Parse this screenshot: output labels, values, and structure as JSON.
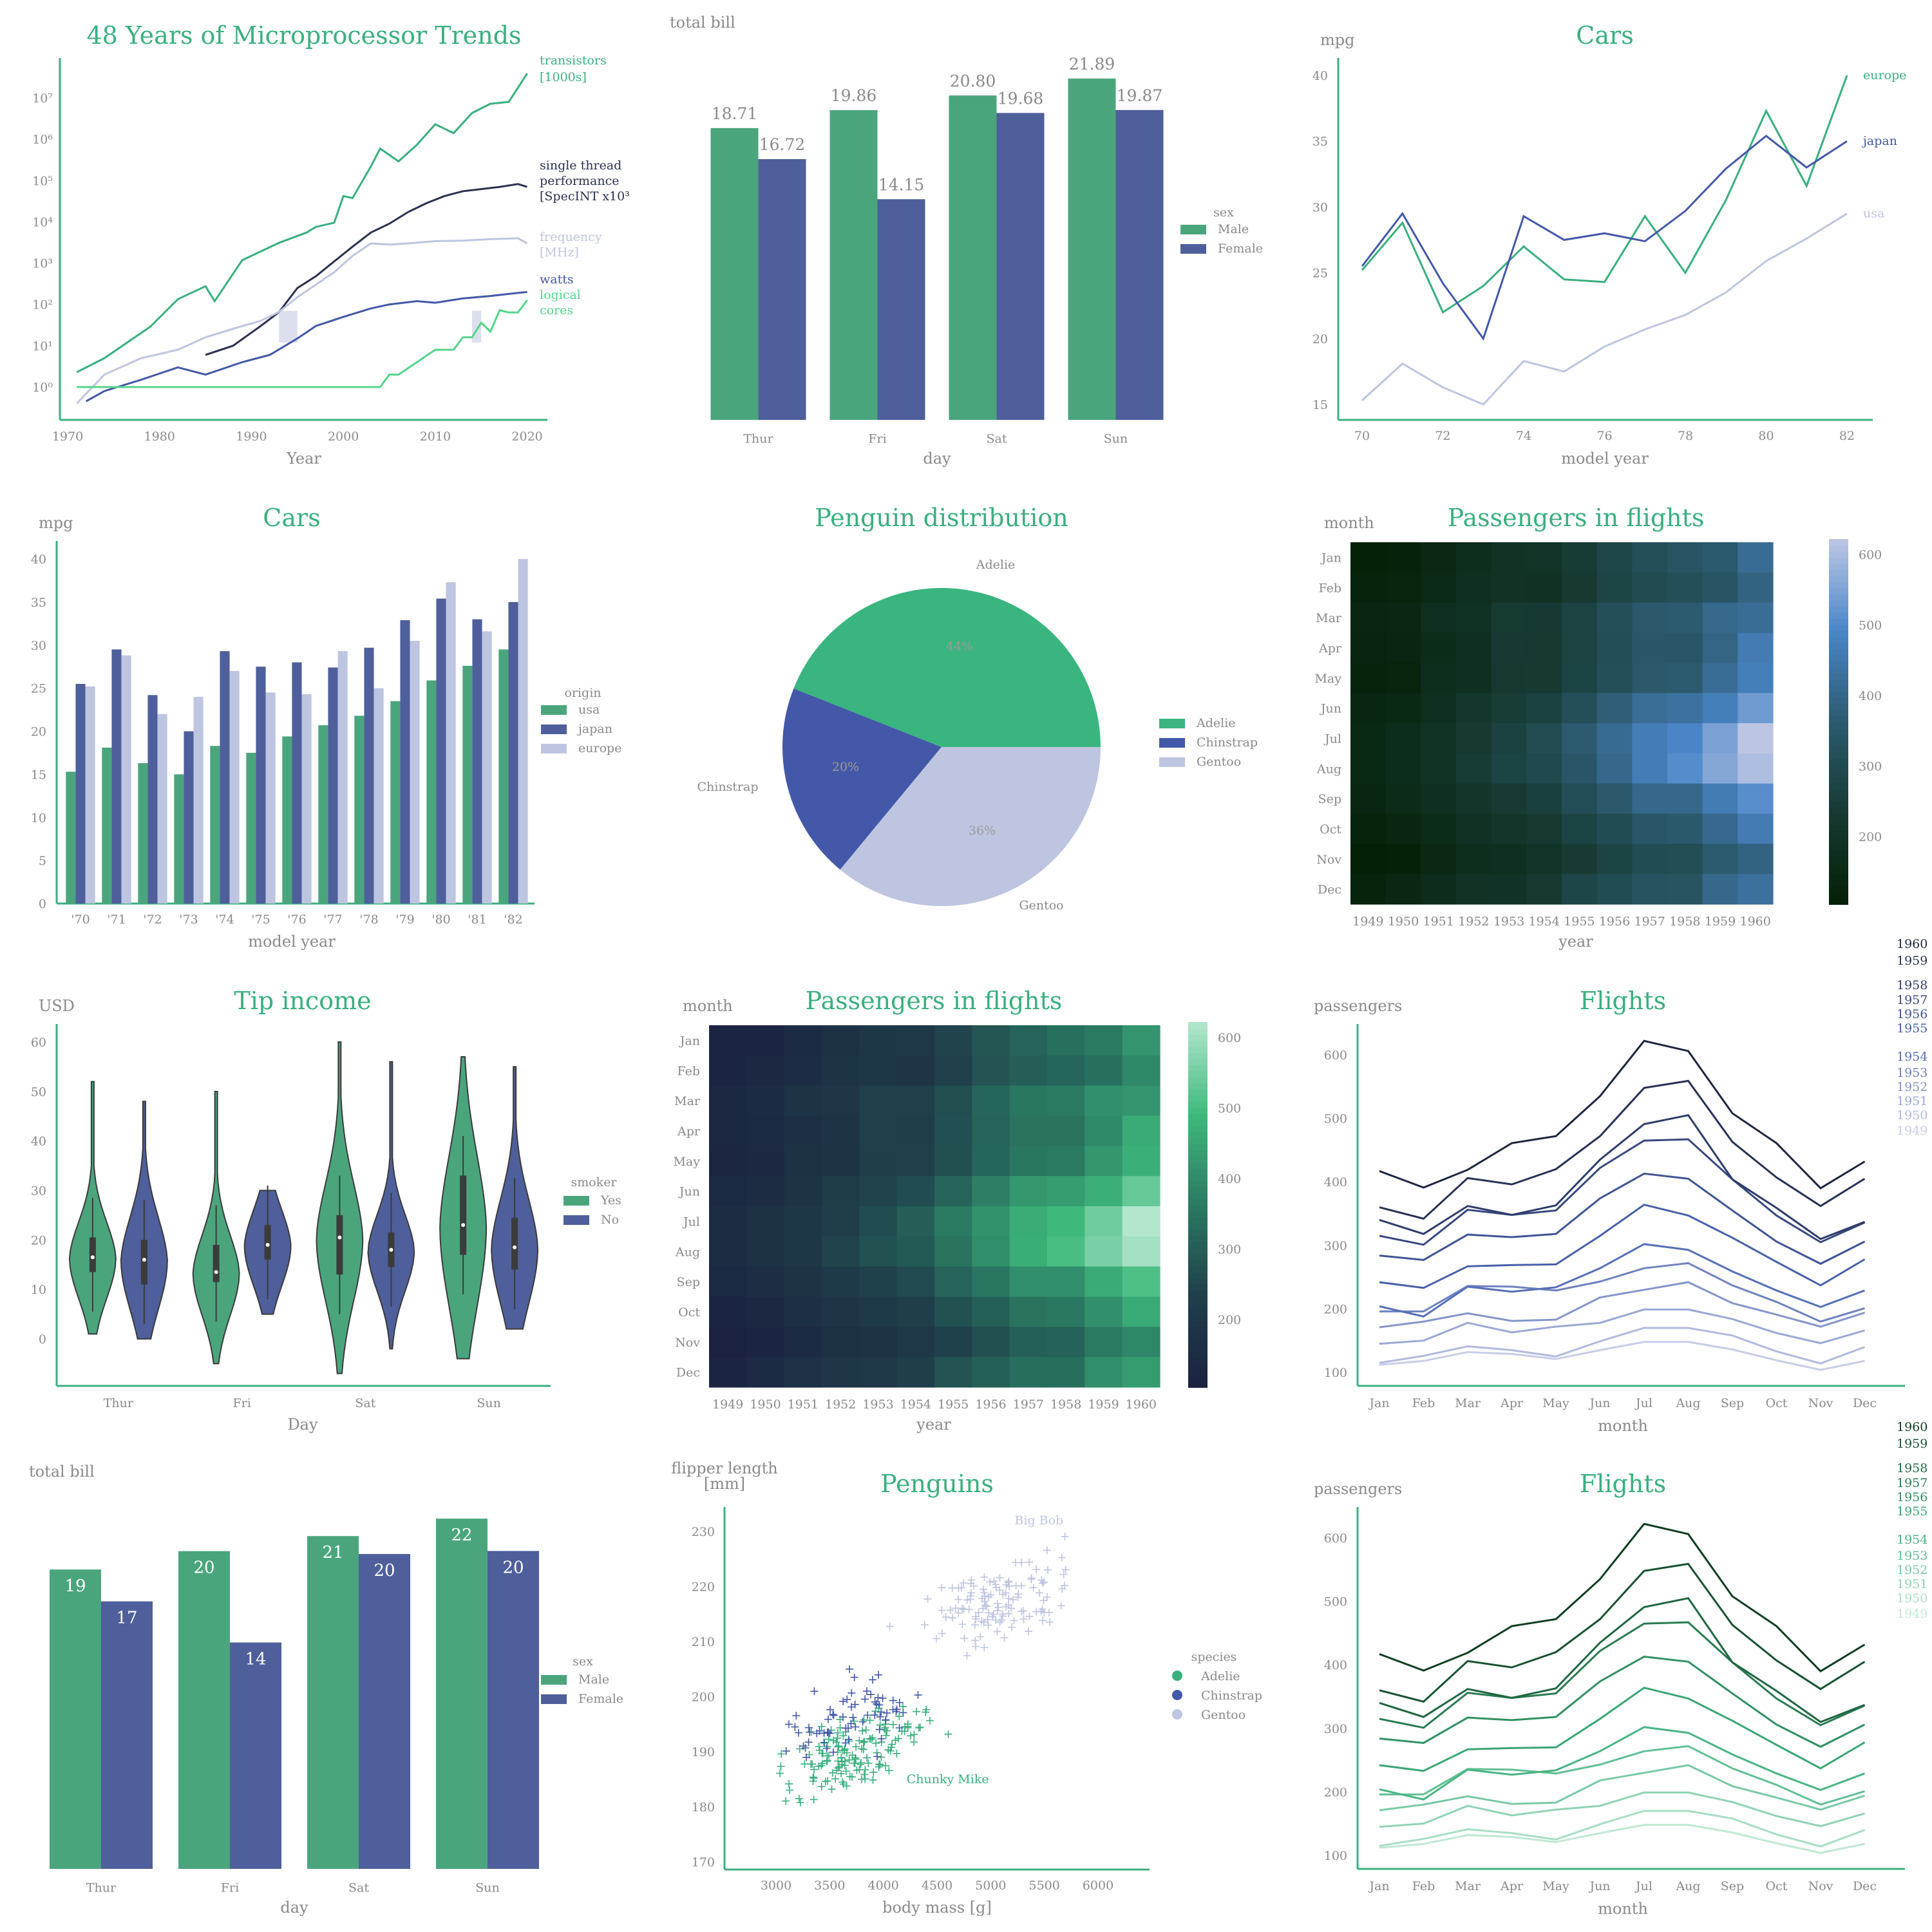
{
  "colors": {
    "green": "#3aaf7e",
    "green_bar": "#4aa57d",
    "green_light": "#55d48a",
    "blue": "#4e5f9b",
    "blue_mid": "#4358a8",
    "lavender": "#bec5e0",
    "navy": "#2b3150",
    "axis": "#3aaf7e",
    "text": "#8a8a8a"
  },
  "chart_data": [
    {
      "type": "line",
      "title": "48 Years of Microprocessor Trends",
      "xlabel": "Year",
      "ylabel": "",
      "yscale": "log",
      "xlim": [
        1970,
        2021
      ],
      "ylim": [
        0.4,
        80000000.0
      ],
      "xticks": [
        "1970",
        "1980",
        "1990",
        "2000",
        "2010",
        "2020"
      ],
      "yticks": [
        "10⁰",
        "10¹",
        "10²",
        "10³",
        "10⁴",
        "10⁵",
        "10⁶",
        "10⁷"
      ],
      "series": [
        {
          "name": "transistors [1000s]",
          "label_lines": [
            "transistors",
            "[1000s]"
          ],
          "color": "#3aaf7e",
          "x": [
            1971,
            1974,
            1979,
            1982,
            1985,
            1986,
            1989,
            1993,
            1996,
            1997,
            1999,
            2000,
            2001,
            2003,
            2004,
            2006,
            2008,
            2010,
            2012,
            2014,
            2016,
            2018,
            2020
          ],
          "y": [
            2.3,
            5,
            29,
            134,
            275,
            120,
            1180,
            3100,
            5500,
            7500,
            9500,
            42000,
            37500,
            220000,
            592000,
            291000,
            731000,
            2300000,
            1400000,
            4300000,
            7200000,
            8000000,
            39000000
          ]
        },
        {
          "name": "single thread performance [SpecINT x10³]",
          "label_lines": [
            "single thread",
            "performance",
            "[SpecINT x10³"
          ],
          "color": "#2b3150",
          "x": [
            1985,
            1988,
            1991,
            1993,
            1995,
            1997,
            1999,
            2001,
            2003,
            2005,
            2007,
            2009,
            2011,
            2013,
            2015,
            2017,
            2019,
            2020
          ],
          "y": [
            6,
            10,
            30,
            65,
            250,
            480,
            1100,
            2500,
            5500,
            9000,
            17000,
            28000,
            42000,
            55000,
            62000,
            70000,
            82000,
            70000
          ]
        },
        {
          "name": "frequency [MHz]",
          "label_lines": [
            "frequency",
            "[MHz]"
          ],
          "color": "#bec5e0",
          "x": [
            1971,
            1974,
            1978,
            1982,
            1985,
            1989,
            1991,
            1993,
            1995,
            1997,
            1999,
            2001,
            2003,
            2005,
            2007,
            2010,
            2013,
            2016,
            2019,
            2020
          ],
          "y": [
            0.4,
            2,
            5,
            8,
            16,
            30,
            40,
            66,
            150,
            300,
            600,
            1500,
            3000,
            2800,
            3000,
            3400,
            3500,
            3800,
            4000,
            3000
          ]
        },
        {
          "name": "watts",
          "label_lines": [
            "watts"
          ],
          "color": "#4358a8",
          "x": [
            1972,
            1974,
            1978,
            1982,
            1985,
            1989,
            1992,
            1995,
            1997,
            2000,
            2003,
            2005,
            2008,
            2010,
            2013,
            2016,
            2018,
            2020
          ],
          "y": [
            0.45,
            0.8,
            1.5,
            3,
            2,
            4,
            6,
            15,
            30,
            50,
            80,
            100,
            120,
            110,
            140,
            160,
            180,
            200
          ]
        },
        {
          "name": "logical cores",
          "label_lines": [
            "logical",
            "cores"
          ],
          "color": "#55d48a",
          "x": [
            1971,
            2004,
            2005,
            2006,
            2008,
            2010,
            2012,
            2013,
            2014,
            2015,
            2016,
            2017,
            2018,
            2019,
            2020
          ],
          "y": [
            1,
            1,
            2,
            2,
            4,
            8,
            8,
            16,
            16,
            36,
            22,
            72,
            64,
            64,
            128
          ]
        }
      ]
    },
    {
      "type": "bar",
      "title": "",
      "ylabel": "total bill",
      "xlabel": "day",
      "ylim": [
        0,
        23
      ],
      "categories": [
        "Thur",
        "Fri",
        "Sat",
        "Sun"
      ],
      "legend_title": "sex",
      "series": [
        {
          "name": "Male",
          "values": [
            18.71,
            19.86,
            20.8,
            21.89
          ],
          "labels": [
            "18.71",
            "19.86",
            "20.80",
            "21.89"
          ],
          "color": "#4aa57d"
        },
        {
          "name": "Female",
          "values": [
            16.72,
            14.15,
            19.68,
            19.87
          ],
          "labels": [
            "16.72",
            "14.15",
            "19.68",
            "19.87"
          ],
          "color": "#4e5f9b"
        }
      ]
    },
    {
      "type": "line",
      "title": "Cars",
      "ylabel": "mpg",
      "xlabel": "model year",
      "xlim": [
        69,
        83
      ],
      "ylim": [
        14,
        42
      ],
      "xticks": [
        "70",
        "72",
        "74",
        "76",
        "78",
        "80",
        "82"
      ],
      "yticks": [
        "15",
        "20",
        "25",
        "30",
        "35",
        "40"
      ],
      "x": [
        70,
        71,
        72,
        73,
        74,
        75,
        76,
        77,
        78,
        79,
        80,
        81,
        82
      ],
      "series": [
        {
          "name": "europe",
          "color": "#3aaf7e",
          "values": [
            25.2,
            28.8,
            22.0,
            24.0,
            27.0,
            24.5,
            24.3,
            29.3,
            25.0,
            30.5,
            37.3,
            31.6,
            40.0
          ]
        },
        {
          "name": "japan",
          "color": "#4358a8",
          "values": [
            25.5,
            29.5,
            24.2,
            20.0,
            29.3,
            27.5,
            28.0,
            27.4,
            29.7,
            32.9,
            35.4,
            33.0,
            35.0
          ]
        },
        {
          "name": "usa",
          "color": "#bec5e0",
          "values": [
            15.3,
            18.1,
            16.3,
            15.0,
            18.3,
            17.5,
            19.4,
            20.7,
            21.8,
            23.5,
            25.9,
            27.6,
            29.5
          ]
        }
      ]
    },
    {
      "type": "bar",
      "title": "Cars",
      "ylabel": "mpg",
      "xlabel": "model year",
      "ylim": [
        0,
        42
      ],
      "yticks": [
        "0",
        "5",
        "10",
        "15",
        "20",
        "25",
        "30",
        "35",
        "40"
      ],
      "categories": [
        "'70",
        "'71",
        "'72",
        "'73",
        "'74",
        "'75",
        "'76",
        "'77",
        "'78",
        "'79",
        "'80",
        "'81",
        "'82"
      ],
      "legend_title": "origin",
      "series": [
        {
          "name": "usa",
          "color": "#4aa57d",
          "values": [
            15.3,
            18.1,
            16.3,
            15.0,
            18.3,
            17.5,
            19.4,
            20.7,
            21.8,
            23.5,
            25.9,
            27.6,
            29.5
          ]
        },
        {
          "name": "japan",
          "color": "#4e5f9b",
          "values": [
            25.5,
            29.5,
            24.2,
            20.0,
            29.3,
            27.5,
            28.0,
            27.4,
            29.7,
            32.9,
            35.4,
            33.0,
            35.0
          ]
        },
        {
          "name": "europe",
          "color": "#bec5e0",
          "values": [
            25.2,
            28.8,
            22.0,
            24.0,
            27.0,
            24.5,
            24.3,
            29.3,
            25.0,
            30.5,
            37.3,
            31.6,
            40.0
          ]
        }
      ]
    },
    {
      "type": "pie",
      "title": "Penguin distribution",
      "slices": [
        {
          "name": "Adelie",
          "value": 44,
          "pct": "44%",
          "color": "#3ab57f"
        },
        {
          "name": "Chinstrap",
          "value": 20,
          "pct": "20%",
          "color": "#4358a8"
        },
        {
          "name": "Gentoo",
          "value": 36,
          "pct": "36%",
          "color": "#bec5e0"
        }
      ]
    },
    {
      "type": "heatmap",
      "title": "Passengers in flights",
      "ylabel": "month",
      "xlabel": "year",
      "colormap": "dark-green-to-blue",
      "colorbar_ticks": [
        "200",
        "300",
        "400",
        "500",
        "600"
      ],
      "vlim": [
        104,
        622
      ],
      "rows": [
        "Jan",
        "Feb",
        "Mar",
        "Apr",
        "May",
        "Jun",
        "Jul",
        "Aug",
        "Sep",
        "Oct",
        "Nov",
        "Dec"
      ],
      "cols": [
        "1949",
        "1950",
        "1951",
        "1952",
        "1953",
        "1954",
        "1955",
        "1956",
        "1957",
        "1958",
        "1959",
        "1960"
      ],
      "values": [
        [
          112,
          115,
          145,
          171,
          196,
          204,
          242,
          284,
          315,
          340,
          360,
          417
        ],
        [
          118,
          126,
          150,
          180,
          196,
          188,
          233,
          277,
          301,
          318,
          342,
          391
        ],
        [
          132,
          141,
          178,
          193,
          236,
          235,
          267,
          317,
          356,
          362,
          406,
          419
        ],
        [
          129,
          135,
          163,
          181,
          235,
          227,
          269,
          313,
          348,
          348,
          396,
          461
        ],
        [
          121,
          125,
          172,
          183,
          229,
          234,
          270,
          318,
          355,
          363,
          420,
          472
        ],
        [
          135,
          149,
          178,
          218,
          243,
          264,
          315,
          374,
          422,
          435,
          472,
          535
        ],
        [
          148,
          170,
          199,
          230,
          264,
          302,
          364,
          413,
          465,
          491,
          548,
          622
        ],
        [
          148,
          170,
          199,
          242,
          272,
          293,
          347,
          405,
          467,
          505,
          559,
          606
        ],
        [
          136,
          158,
          184,
          209,
          237,
          259,
          312,
          355,
          404,
          404,
          463,
          508
        ],
        [
          119,
          133,
          162,
          191,
          211,
          229,
          274,
          306,
          347,
          359,
          407,
          461
        ],
        [
          104,
          114,
          146,
          172,
          180,
          203,
          237,
          271,
          305,
          310,
          362,
          390
        ],
        [
          118,
          140,
          166,
          194,
          201,
          229,
          278,
          306,
          336,
          337,
          405,
          432
        ]
      ]
    },
    {
      "type": "violin",
      "title": "Tip income",
      "ylabel": "USD",
      "xlabel": "Day",
      "ylim": [
        -7,
        63
      ],
      "yticks": [
        "0",
        "10",
        "20",
        "30",
        "40",
        "50",
        "60"
      ],
      "categories": [
        "Thur",
        "Fri",
        "Sat",
        "Sun"
      ],
      "legend_title": "smoker",
      "series": [
        {
          "name": "Yes",
          "color": "#4aa57d",
          "min": [
            1,
            -5,
            -7,
            -4
          ],
          "max": [
            52,
            50,
            60,
            57
          ],
          "q1": [
            13.5,
            11.5,
            13,
            17
          ],
          "median": [
            16.5,
            13.5,
            20.5,
            23
          ],
          "q3": [
            20.5,
            19,
            25,
            33
          ]
        },
        {
          "name": "No",
          "color": "#4e5f9b",
          "min": [
            0,
            5,
            -2,
            2
          ],
          "max": [
            48,
            30,
            56,
            55
          ],
          "q1": [
            11,
            16,
            14.5,
            14
          ],
          "median": [
            16,
            19,
            18,
            18.5
          ],
          "q3": [
            20,
            23,
            21.5,
            24.5
          ]
        }
      ]
    },
    {
      "type": "heatmap",
      "title": "Passengers in flights",
      "ylabel": "month",
      "xlabel": "year",
      "colormap": "navy-to-green",
      "colorbar_ticks": [
        "200",
        "300",
        "400",
        "500",
        "600"
      ],
      "vlim": [
        104,
        622
      ],
      "rows": [
        "Jan",
        "Feb",
        "Mar",
        "Apr",
        "May",
        "Jun",
        "Jul",
        "Aug",
        "Sep",
        "Oct",
        "Nov",
        "Dec"
      ],
      "cols": [
        "1949",
        "1950",
        "1951",
        "1952",
        "1953",
        "1954",
        "1955",
        "1956",
        "1957",
        "1958",
        "1959",
        "1960"
      ],
      "values_ref": "same as previous heatmap"
    },
    {
      "type": "line",
      "title": "Flights",
      "ylabel": "passengers",
      "xlabel": "month",
      "ylim": [
        95,
        640
      ],
      "yticks": [
        "100",
        "200",
        "300",
        "400",
        "500",
        "600"
      ],
      "categories": [
        "Jan",
        "Feb",
        "Mar",
        "Apr",
        "May",
        "Jun",
        "Jul",
        "Aug",
        "Sep",
        "Oct",
        "Nov",
        "Dec"
      ],
      "palette": "lavender-to-navy",
      "series_names": [
        "1949",
        "1950",
        "1951",
        "1952",
        "1953",
        "1954",
        "1955",
        "1956",
        "1957",
        "1958",
        "1959",
        "1960"
      ]
    },
    {
      "type": "bar",
      "title": "",
      "ylabel": "total bill",
      "xlabel": "day",
      "ylim": [
        0,
        22.5
      ],
      "categories": [
        "Thur",
        "Fri",
        "Sat",
        "Sun"
      ],
      "legend_title": "sex",
      "series": [
        {
          "name": "Male",
          "values": [
            18.71,
            19.86,
            20.8,
            21.89
          ],
          "labels": [
            "19",
            "20",
            "21",
            "22"
          ],
          "color": "#4aa57d"
        },
        {
          "name": "Female",
          "values": [
            16.72,
            14.15,
            19.68,
            19.87
          ],
          "labels": [
            "17",
            "14",
            "20",
            "20"
          ],
          "color": "#4e5f9b"
        }
      ]
    },
    {
      "type": "scatter",
      "title": "Penguins",
      "ylabel_lines": [
        "flipper length",
        "[mm]"
      ],
      "xlabel": "body mass [g]",
      "xlim": [
        2550,
        6500
      ],
      "ylim": [
        168,
        235
      ],
      "xticks": [
        "3000",
        "3500",
        "4000",
        "4500",
        "5000",
        "5500",
        "6000"
      ],
      "yticks": [
        "170",
        "180",
        "190",
        "200",
        "210",
        "220",
        "230"
      ],
      "legend_title": "species",
      "annotations": [
        {
          "text": "Big Bob",
          "x": 5450,
          "y": 232,
          "color": "#bec5e0"
        },
        {
          "text": "Chunky Mike",
          "x": 4600,
          "y": 185,
          "color": "#3aaf7e"
        }
      ],
      "series": [
        {
          "name": "Adelie",
          "color": "#3aaf7e",
          "mass_mean": 3700,
          "mass_sd": 450,
          "flip_mean": 190,
          "flip_sd": 6.5,
          "n": 150
        },
        {
          "name": "Chinstrap",
          "color": "#4358a8",
          "mass_mean": 3730,
          "mass_sd": 380,
          "flip_mean": 196,
          "flip_sd": 7,
          "n": 68
        },
        {
          "name": "Gentoo",
          "color": "#bec5e0",
          "mass_mean": 5070,
          "mass_sd": 500,
          "flip_mean": 217,
          "flip_sd": 6.5,
          "n": 124
        }
      ]
    },
    {
      "type": "line",
      "title": "Flights",
      "ylabel": "passengers",
      "xlabel": "month",
      "ylim": [
        95,
        640
      ],
      "yticks": [
        "100",
        "200",
        "300",
        "400",
        "500",
        "600"
      ],
      "categories": [
        "Jan",
        "Feb",
        "Mar",
        "Apr",
        "May",
        "Jun",
        "Jul",
        "Aug",
        "Sep",
        "Oct",
        "Nov",
        "Dec"
      ],
      "palette": "mint-to-darkgreen",
      "series_names": [
        "1949",
        "1950",
        "1951",
        "1952",
        "1953",
        "1954",
        "1955",
        "1956",
        "1957",
        "1958",
        "1959",
        "1960"
      ]
    }
  ]
}
